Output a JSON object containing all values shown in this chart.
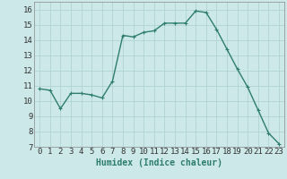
{
  "x": [
    0,
    1,
    2,
    3,
    4,
    5,
    6,
    7,
    8,
    9,
    10,
    11,
    12,
    13,
    14,
    15,
    16,
    17,
    18,
    19,
    20,
    21,
    22,
    23
  ],
  "y": [
    10.8,
    10.7,
    9.5,
    10.5,
    10.5,
    10.4,
    10.2,
    11.3,
    14.3,
    14.2,
    14.5,
    14.6,
    15.1,
    15.1,
    15.1,
    15.9,
    15.8,
    14.7,
    13.4,
    12.1,
    10.9,
    9.4,
    7.9,
    7.2
  ],
  "line_color": "#2e7d6e",
  "marker": "+",
  "marker_size": 3,
  "bg_color": "#cce8e8",
  "grid_color": "#aacfcf",
  "xlabel": "Humidex (Indice chaleur)",
  "ylabel_ticks": [
    7,
    8,
    9,
    10,
    11,
    12,
    13,
    14,
    15,
    16
  ],
  "xlim": [
    -0.5,
    23.5
  ],
  "ylim": [
    7,
    16.5
  ],
  "xlabel_fontsize": 7,
  "tick_fontsize": 6.5,
  "line_width": 1.0
}
